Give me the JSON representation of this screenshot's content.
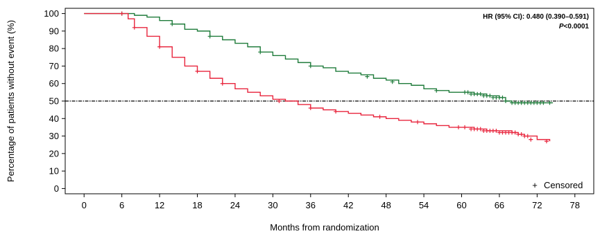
{
  "chart_data": {
    "type": "line",
    "xlabel": "Months from randomization",
    "ylabel": "Percentage of patients without event (%)",
    "xlim": [
      -3,
      81
    ],
    "ylim": [
      -3,
      103
    ],
    "x_ticks": [
      0,
      6,
      12,
      18,
      24,
      30,
      36,
      42,
      48,
      54,
      60,
      66,
      72,
      78
    ],
    "y_ticks": [
      0,
      10,
      20,
      30,
      40,
      50,
      60,
      70,
      80,
      90,
      100
    ],
    "reference_line_y": 50,
    "annotation": {
      "hr": "HR (95% CI): 0.480 (0.390–0.591)",
      "p_italic": "P",
      "p_rest": "<0.0001"
    },
    "legend": {
      "marker": "+",
      "label": "Censored",
      "position": "bottom-right"
    },
    "colors": {
      "green": "#1e7b3a",
      "red": "#e8243c",
      "reference": "#000000"
    },
    "series": [
      {
        "color": "#1e7b3a",
        "x": [
          0,
          6,
          8,
          10,
          12,
          14,
          16,
          18,
          20,
          22,
          24,
          26,
          28,
          30,
          32,
          34,
          36,
          38,
          40,
          42,
          44,
          46,
          48,
          50,
          52,
          54,
          56,
          58,
          60,
          62,
          64,
          66,
          67,
          68,
          70,
          72,
          74.5
        ],
        "y": [
          100,
          100,
          99,
          98,
          96,
          94,
          91,
          90,
          87,
          85,
          83,
          81,
          78,
          76,
          74,
          72,
          70,
          69,
          67,
          66,
          65,
          63,
          62,
          60,
          59,
          57,
          56,
          55,
          55,
          54,
          53,
          52,
          50,
          49,
          49,
          49,
          49
        ],
        "censored": [
          [
            6,
            100
          ],
          [
            14,
            94
          ],
          [
            20,
            87
          ],
          [
            28,
            78
          ],
          [
            36,
            70
          ],
          [
            45,
            64
          ],
          [
            49,
            61
          ],
          [
            56,
            56
          ],
          [
            60.5,
            55
          ],
          [
            61,
            55
          ],
          [
            61.5,
            54
          ],
          [
            62,
            54
          ],
          [
            62.5,
            54
          ],
          [
            63,
            54
          ],
          [
            63.5,
            53
          ],
          [
            64,
            53
          ],
          [
            64.5,
            53
          ],
          [
            65,
            52
          ],
          [
            65.5,
            52
          ],
          [
            66,
            52
          ],
          [
            66.5,
            52
          ],
          [
            67,
            50
          ],
          [
            68,
            49
          ],
          [
            68.5,
            49
          ],
          [
            69,
            49
          ],
          [
            69.5,
            49
          ],
          [
            70,
            49
          ],
          [
            70.5,
            49
          ],
          [
            71,
            49
          ],
          [
            71.5,
            49
          ],
          [
            72,
            49
          ],
          [
            72.5,
            49
          ],
          [
            73,
            49
          ],
          [
            74,
            49
          ]
        ]
      },
      {
        "color": "#e8243c",
        "x": [
          0,
          6,
          7,
          8,
          10,
          12,
          14,
          16,
          18,
          20,
          22,
          24,
          26,
          28,
          30,
          32,
          34,
          36,
          38,
          40,
          42,
          44,
          46,
          48,
          50,
          52,
          54,
          56,
          58,
          60,
          62,
          64,
          66,
          68,
          69,
          70,
          72,
          74
        ],
        "y": [
          100,
          100,
          97,
          92,
          87,
          81,
          75,
          70,
          67,
          63,
          60,
          57,
          55,
          53,
          51,
          50,
          48,
          46,
          45,
          44,
          43,
          42,
          41,
          40,
          39,
          38,
          37,
          36,
          35,
          35,
          34,
          33,
          33,
          32,
          31,
          30,
          28,
          27
        ],
        "censored": [
          [
            6,
            100
          ],
          [
            8,
            92
          ],
          [
            12,
            81
          ],
          [
            18,
            67
          ],
          [
            22,
            60
          ],
          [
            31,
            50
          ],
          [
            36,
            46
          ],
          [
            40,
            44
          ],
          [
            47,
            41
          ],
          [
            53,
            38
          ],
          [
            59.5,
            35
          ],
          [
            60.5,
            35
          ],
          [
            61.5,
            34
          ],
          [
            62,
            34
          ],
          [
            62.5,
            34
          ],
          [
            63,
            34
          ],
          [
            63.5,
            33
          ],
          [
            64,
            33
          ],
          [
            64.5,
            33
          ],
          [
            65,
            33
          ],
          [
            65.5,
            33
          ],
          [
            66,
            32
          ],
          [
            66.5,
            32
          ],
          [
            67,
            32
          ],
          [
            67.5,
            32
          ],
          [
            68,
            32
          ],
          [
            68.5,
            32
          ],
          [
            69,
            31
          ],
          [
            69.5,
            31
          ],
          [
            70,
            30
          ],
          [
            70.5,
            30
          ],
          [
            71,
            28
          ],
          [
            73.5,
            27
          ]
        ]
      }
    ]
  }
}
